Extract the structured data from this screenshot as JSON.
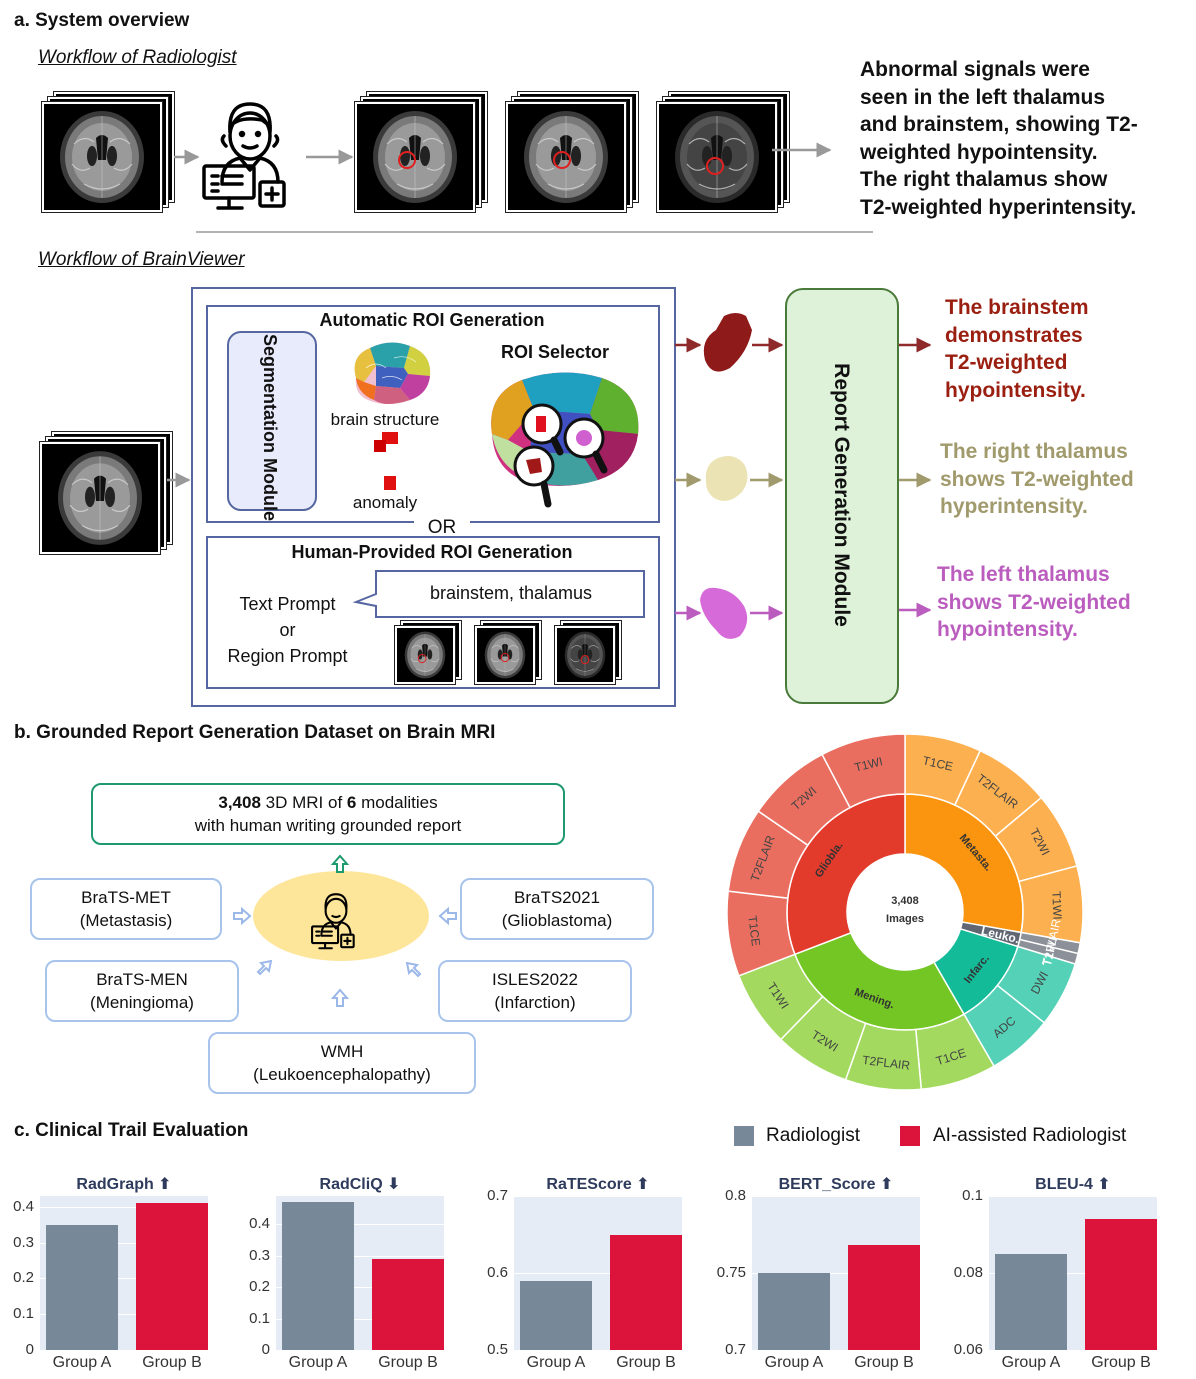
{
  "sections": {
    "a": "a. System overview",
    "b": "b. Grounded Report Generation Dataset on Brain MRI",
    "c": "c. Clinical Trail Evaluation"
  },
  "workflow_radiologist": {
    "title": "Workflow of Radiologist",
    "report": [
      "Abnormal signals were",
      "seen in the left thalamus",
      "and brainstem, showing T2-",
      "weighted hypointensity.",
      "The right thalamus show",
      "T2-weighted hyperintensity."
    ]
  },
  "workflow_brainviewer": {
    "title": "Workflow of BrainViewer",
    "auto_roi_title": "Automatic ROI Generation",
    "segmentation_module": "Segmentation Module",
    "roi_selector": "ROI Selector",
    "brain_structure": "brain structure",
    "anomaly": "anomaly",
    "or": "OR",
    "human_roi_title": "Human-Provided ROI Generation",
    "text_prompt": "Text Prompt",
    "or_small": "or",
    "region_prompt": "Region Prompt",
    "prompt_text": "brainstem, thalamus",
    "report_module": "Report Generation Module",
    "outputs": [
      {
        "lines": [
          "The brainstem",
          "demonstrates",
          "T2-weighted",
          "hypointensity."
        ],
        "color": "#9a1f10"
      },
      {
        "lines": [
          "The right thalamus",
          "shows T2-weighted",
          "hyperintensity."
        ],
        "color": "#a09a6c"
      },
      {
        "lines": [
          "The left thalamus",
          "shows T2-weighted",
          "hypointensity."
        ],
        "color": "#bb5dbe"
      }
    ],
    "roi_colors": [
      "#8e1a1a",
      "#ece3b4",
      "#d76ad9"
    ]
  },
  "dataset": {
    "summary_bold1": "3,408",
    "summary_mid": " 3D MRI of ",
    "summary_bold2": "6",
    "summary_end": " modalities",
    "summary_line2": "with human writing grounded report",
    "sources": [
      {
        "name": "BraTS-MET",
        "sub": "(Metastasis)"
      },
      {
        "name": "BraTS2021",
        "sub": "(Glioblastoma)"
      },
      {
        "name": "BraTS-MEN",
        "sub": "(Meningioma)"
      },
      {
        "name": "ISLES2022",
        "sub": "(Infarction)"
      },
      {
        "name": "WMH",
        "sub": "(Leukoencephalopathy)"
      }
    ],
    "sunburst": {
      "center_line1": "3,408",
      "center_line2": "Images",
      "inner": [
        {
          "label": "Metasta.",
          "color": "#fb950f",
          "start": 0,
          "end": 100
        },
        {
          "label": "Leuko.",
          "color": "#616772",
          "start": 100,
          "end": 107
        },
        {
          "label": "Infarc.",
          "color": "#14bb98",
          "start": 107,
          "end": 150
        },
        {
          "label": "Mening.",
          "color": "#74c624",
          "start": 150,
          "end": 249
        },
        {
          "label": "Gliobla.",
          "color": "#e23b2c",
          "start": 249,
          "end": 360
        }
      ],
      "outer": [
        {
          "label": "T1CE",
          "color": "#fdb04f",
          "start": 0,
          "end": 25
        },
        {
          "label": "T2FLAIR",
          "color": "#fdb04f",
          "start": 25,
          "end": 50
        },
        {
          "label": "T2WI",
          "color": "#fdb04f",
          "start": 50,
          "end": 75
        },
        {
          "label": "T1WI",
          "color": "#fdb04f",
          "start": 75,
          "end": 100
        },
        {
          "label": "T2FLAIR",
          "color": "#8c9098",
          "start": 100,
          "end": 103.5
        },
        {
          "label": "T1WI",
          "color": "#8c9098",
          "start": 103.5,
          "end": 107
        },
        {
          "label": "DWI",
          "color": "#54d1b6",
          "start": 107,
          "end": 128.5
        },
        {
          "label": "ADC",
          "color": "#54d1b6",
          "start": 128.5,
          "end": 150
        },
        {
          "label": "T1CE",
          "color": "#a2d95e",
          "start": 150,
          "end": 174.75
        },
        {
          "label": "T2FLAIR",
          "color": "#a2d95e",
          "start": 174.75,
          "end": 199.5
        },
        {
          "label": "T2WI",
          "color": "#a2d95e",
          "start": 199.5,
          "end": 224.25
        },
        {
          "label": "T1WI",
          "color": "#a2d95e",
          "start": 224.25,
          "end": 249
        },
        {
          "label": "T1CE",
          "color": "#ea6e60",
          "start": 249,
          "end": 276.75
        },
        {
          "label": "T2FLAIR",
          "color": "#ea6e60",
          "start": 276.75,
          "end": 304.5
        },
        {
          "label": "T2WI",
          "color": "#ea6e60",
          "start": 304.5,
          "end": 332.25
        },
        {
          "label": "T1WI",
          "color": "#ea6e60",
          "start": 332.25,
          "end": 360
        }
      ]
    }
  },
  "legend": [
    {
      "label": "Radiologist",
      "color": "#778899"
    },
    {
      "label": "AI-assisted Radiologist",
      "color": "#dc143c"
    }
  ],
  "chart_data": [
    {
      "type": "bar",
      "title": "RadGraph ⬆",
      "categories": [
        "Group A",
        "Group B"
      ],
      "values": [
        0.35,
        0.41
      ],
      "ylim": [
        0,
        0.43
      ],
      "ticks": [
        "0",
        "0.1",
        "0.2",
        "0.3",
        "0.4"
      ],
      "tick_vals": [
        0,
        0.1,
        0.2,
        0.3,
        0.4
      ]
    },
    {
      "type": "bar",
      "title": "RadCliQ ⬇",
      "categories": [
        "Group A",
        "Group B"
      ],
      "values": [
        0.47,
        0.29
      ],
      "ylim": [
        0,
        0.49
      ],
      "ticks": [
        "0",
        "0.1",
        "0.2",
        "0.3",
        "0.4"
      ],
      "tick_vals": [
        0,
        0.1,
        0.2,
        0.3,
        0.4
      ]
    },
    {
      "type": "bar",
      "title": "RaTEScore ⬆",
      "categories": [
        "Group A",
        "Group B"
      ],
      "values": [
        0.59,
        0.65
      ],
      "ylim": [
        0.5,
        0.7
      ],
      "ticks": [
        "0.5",
        "0.6",
        "0.7"
      ],
      "tick_vals": [
        0.5,
        0.6,
        0.7
      ]
    },
    {
      "type": "bar",
      "title": "BERT_Score ⬆",
      "categories": [
        "Group A",
        "Group B"
      ],
      "values": [
        0.75,
        0.768
      ],
      "ylim": [
        0.7,
        0.8
      ],
      "ticks": [
        "0.7",
        "0.75",
        "0.8"
      ],
      "tick_vals": [
        0.7,
        0.75,
        0.8
      ]
    },
    {
      "type": "bar",
      "title": "BLEU-4 ⬆",
      "categories": [
        "Group A",
        "Group B"
      ],
      "values": [
        0.085,
        0.094
      ],
      "ylim": [
        0.06,
        0.1
      ],
      "ticks": [
        "0.06",
        "0.08",
        "0.1"
      ],
      "tick_vals": [
        0.06,
        0.08,
        0.1
      ]
    }
  ]
}
